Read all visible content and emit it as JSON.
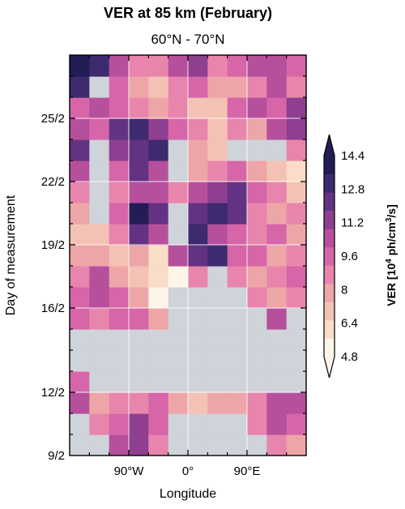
{
  "chart_data": {
    "type": "heatmap",
    "title": "VER at 85 km (February)",
    "subtitle": "60°N - 70°N",
    "xlabel": "Longitude",
    "ylabel": "Day of measurement",
    "xlim": [
      -180,
      180
    ],
    "ylim": [
      9,
      28
    ],
    "x_ticks": [
      {
        "value": -90,
        "label": "90°W"
      },
      {
        "value": 0,
        "label": "0°"
      },
      {
        "value": 90,
        "label": "90°E"
      }
    ],
    "y_ticks": [
      {
        "value": 9,
        "label": "9/2"
      },
      {
        "value": 12,
        "label": "12/2"
      },
      {
        "value": 16,
        "label": "16/2"
      },
      {
        "value": 19,
        "label": "19/2"
      },
      {
        "value": 22,
        "label": "22/2"
      },
      {
        "value": 25,
        "label": "25/2"
      }
    ],
    "grid": true,
    "colorbar": {
      "label_main": "VER [10",
      "label_sup1": "4",
      "label_mid": " ph/cm",
      "label_sup2": "3",
      "label_end": "/s]",
      "ticks": [
        "4.8",
        "6.4",
        "8",
        "9.6",
        "11.2",
        "12.8",
        "14.4"
      ],
      "range": [
        4.8,
        14.4
      ],
      "extend": "both",
      "colors": [
        "#fdf6e8",
        "#f9ddc8",
        "#f4c2b4",
        "#eea5a8",
        "#e885ad",
        "#d666a8",
        "#b6509d",
        "#8e3f90",
        "#643282",
        "#3d2a6f",
        "#231d55"
      ]
    },
    "longitudes": [
      -165,
      -135,
      -105,
      -75,
      -45,
      -15,
      15,
      45,
      75,
      105,
      135,
      165
    ],
    "days": [
      9.5,
      10.5,
      11.5,
      12.5,
      13.5,
      14.5,
      15.5,
      16.5,
      17.5,
      18.5,
      19.5,
      20.5,
      21.5,
      22.5,
      23.5,
      24.5,
      25.5,
      26.5,
      27.5
    ],
    "values": [
      [
        null,
        null,
        11.5,
        11.8,
        9.5,
        null,
        null,
        null,
        null,
        null,
        9.2,
        8.5
      ],
      [
        null,
        9.0,
        10.5,
        12.4,
        10.2,
        null,
        null,
        null,
        null,
        9.0,
        11.2,
        10.0
      ],
      [
        11.0,
        8.5,
        9.0,
        9.5,
        9.8,
        8.0,
        7.5,
        8.2,
        8.5,
        9.5,
        10.8,
        11.5
      ],
      [
        10.5,
        null,
        null,
        null,
        null,
        null,
        null,
        null,
        null,
        null,
        null,
        null
      ],
      [
        null,
        null,
        null,
        null,
        null,
        null,
        null,
        null,
        null,
        null,
        null,
        null
      ],
      [
        null,
        null,
        null,
        null,
        null,
        null,
        null,
        null,
        null,
        null,
        null,
        null
      ],
      [
        10.0,
        9.0,
        9.8,
        10.5,
        8.0,
        null,
        null,
        null,
        null,
        null,
        11.5,
        null
      ],
      [
        10.5,
        11.5,
        10.2,
        8.0,
        5.5,
        null,
        null,
        null,
        null,
        9.0,
        8.5,
        9.5
      ],
      [
        9.0,
        10.8,
        8.5,
        7.0,
        6.0,
        5.5,
        9.5,
        null,
        9.0,
        8.5,
        9.0,
        10.0
      ],
      [
        8.5,
        8.0,
        7.5,
        8.5,
        6.5,
        10.8,
        12.5,
        13.8,
        10.5,
        9.8,
        8.5,
        9.5
      ],
      [
        7.0,
        7.5,
        9.0,
        12.5,
        11.5,
        null,
        14.2,
        11.0,
        10.5,
        8.8,
        9.8,
        8.0
      ],
      [
        8.0,
        null,
        10.0,
        14.5,
        13.2,
        null,
        12.5,
        13.8,
        12.5,
        9.5,
        8.5,
        9.0
      ],
      [
        9.5,
        null,
        9.2,
        11.5,
        11.0,
        9.5,
        10.8,
        12.0,
        13.0,
        10.2,
        9.0,
        7.5
      ],
      [
        11.5,
        null,
        10.5,
        12.5,
        11.0,
        null,
        8.5,
        9.5,
        10.5,
        8.5,
        7.0,
        6.5
      ],
      [
        12.5,
        null,
        11.8,
        12.8,
        13.5,
        null,
        8.0,
        7.5,
        null,
        null,
        null,
        8.8
      ],
      [
        11.0,
        10.2,
        12.5,
        14.2,
        12.0,
        10.5,
        9.0,
        7.0,
        9.0,
        8.5,
        11.5,
        12.0
      ],
      [
        10.5,
        11.0,
        10.5,
        9.0,
        8.5,
        9.5,
        7.5,
        7.0,
        10.5,
        11.5,
        10.5,
        11.8
      ],
      [
        13.5,
        null,
        9.8,
        8.0,
        7.5,
        9.0,
        10.5,
        8.2,
        7.8,
        9.0,
        10.8,
        9.5
      ],
      [
        14.8,
        13.5,
        10.8,
        9.5,
        8.8,
        11.0,
        12.0,
        9.5,
        10.5,
        11.5,
        11.0,
        10.0
      ]
    ]
  }
}
